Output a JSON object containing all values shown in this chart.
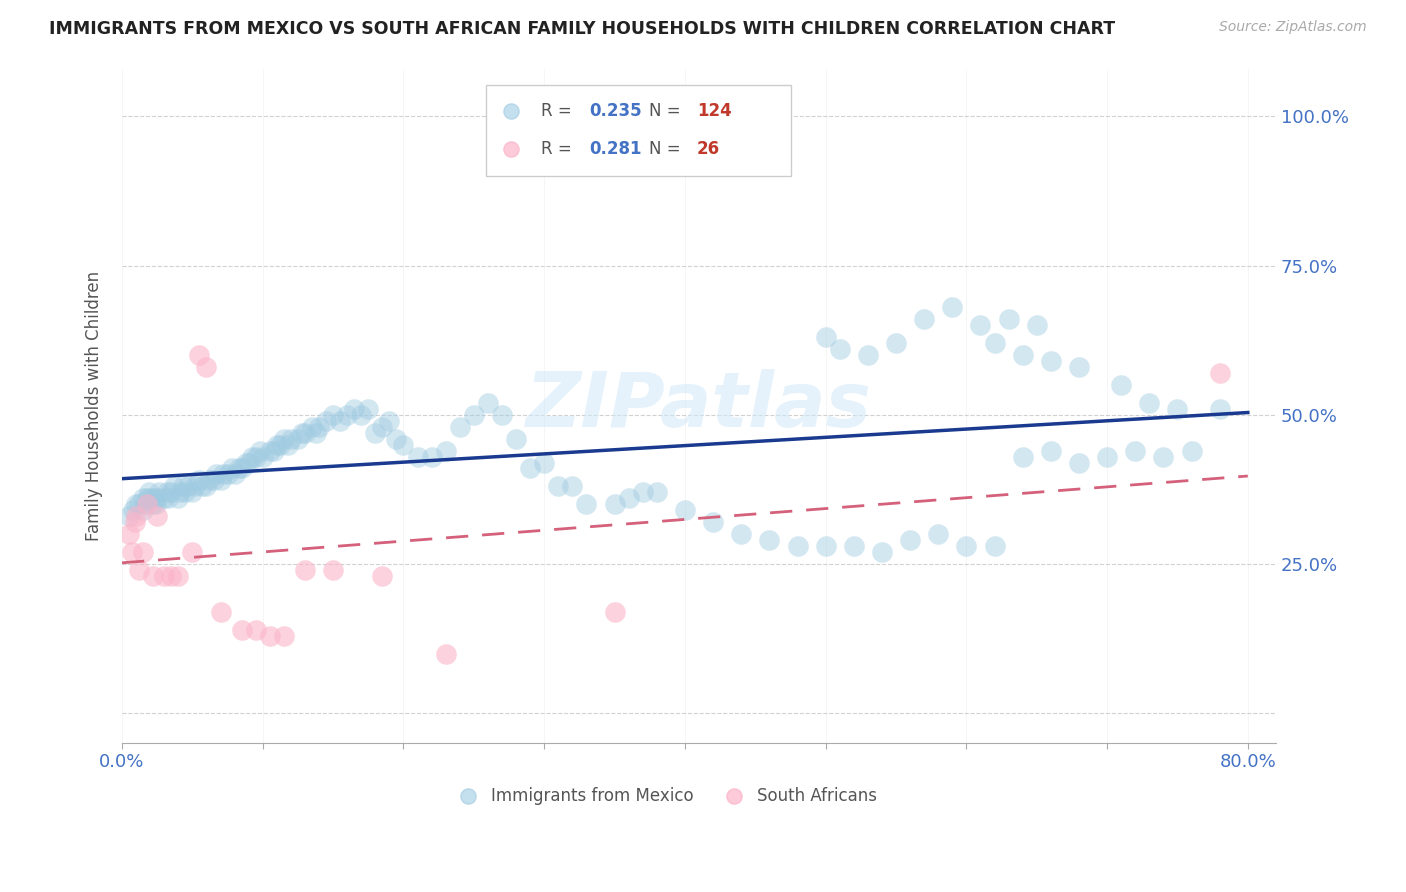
{
  "title": "IMMIGRANTS FROM MEXICO VS SOUTH AFRICAN FAMILY HOUSEHOLDS WITH CHILDREN CORRELATION CHART",
  "source": "Source: ZipAtlas.com",
  "ylabel": "Family Households with Children",
  "legend1": "Immigrants from Mexico",
  "legend2": "South Africans",
  "R1": 0.235,
  "N1": 124,
  "R2": 0.281,
  "N2": 26,
  "xlim": [
    0.0,
    0.82
  ],
  "ylim": [
    -0.05,
    1.08
  ],
  "color_blue": "#9ecae1",
  "color_pink": "#fbb4c9",
  "color_trend_blue": "#1a3a8f",
  "color_trend_pink": "#d4607a",
  "color_axis": "#4472c4",
  "color_r": "#4472c4",
  "color_n": "#c0392b",
  "watermark_color": "#d0e8f8",
  "blue_x": [
    0.005,
    0.008,
    0.01,
    0.012,
    0.015,
    0.015,
    0.017,
    0.018,
    0.019,
    0.02,
    0.022,
    0.023,
    0.024,
    0.025,
    0.026,
    0.03,
    0.032,
    0.033,
    0.035,
    0.037,
    0.04,
    0.041,
    0.043,
    0.045,
    0.047,
    0.05,
    0.052,
    0.055,
    0.057,
    0.06,
    0.062,
    0.065,
    0.067,
    0.07,
    0.072,
    0.075,
    0.078,
    0.08,
    0.083,
    0.085,
    0.088,
    0.09,
    0.092,
    0.095,
    0.098,
    0.1,
    0.105,
    0.108,
    0.11,
    0.112,
    0.115,
    0.118,
    0.12,
    0.125,
    0.128,
    0.13,
    0.135,
    0.138,
    0.14,
    0.145,
    0.15,
    0.155,
    0.16,
    0.165,
    0.17,
    0.175,
    0.18,
    0.185,
    0.19,
    0.195,
    0.2,
    0.21,
    0.22,
    0.23,
    0.24,
    0.25,
    0.26,
    0.27,
    0.28,
    0.29,
    0.3,
    0.31,
    0.32,
    0.33,
    0.35,
    0.36,
    0.37,
    0.38,
    0.4,
    0.42,
    0.44,
    0.46,
    0.48,
    0.5,
    0.52,
    0.54,
    0.56,
    0.58,
    0.6,
    0.62,
    0.64,
    0.66,
    0.68,
    0.7,
    0.72,
    0.74,
    0.76,
    0.78,
    0.57,
    0.59,
    0.61,
    0.63,
    0.65,
    0.5,
    0.51,
    0.53,
    0.55,
    0.62,
    0.64,
    0.66,
    0.68,
    0.71,
    0.73,
    0.75
  ],
  "blue_y": [
    0.33,
    0.34,
    0.35,
    0.35,
    0.34,
    0.36,
    0.35,
    0.36,
    0.37,
    0.36,
    0.35,
    0.36,
    0.35,
    0.36,
    0.37,
    0.36,
    0.37,
    0.36,
    0.37,
    0.38,
    0.36,
    0.37,
    0.38,
    0.37,
    0.38,
    0.37,
    0.38,
    0.39,
    0.38,
    0.38,
    0.39,
    0.39,
    0.4,
    0.39,
    0.4,
    0.4,
    0.41,
    0.4,
    0.41,
    0.41,
    0.42,
    0.42,
    0.43,
    0.43,
    0.44,
    0.43,
    0.44,
    0.44,
    0.45,
    0.45,
    0.46,
    0.45,
    0.46,
    0.46,
    0.47,
    0.47,
    0.48,
    0.47,
    0.48,
    0.49,
    0.5,
    0.49,
    0.5,
    0.51,
    0.5,
    0.51,
    0.47,
    0.48,
    0.49,
    0.46,
    0.45,
    0.43,
    0.43,
    0.44,
    0.48,
    0.5,
    0.52,
    0.5,
    0.46,
    0.41,
    0.42,
    0.38,
    0.38,
    0.35,
    0.35,
    0.36,
    0.37,
    0.37,
    0.34,
    0.32,
    0.3,
    0.29,
    0.28,
    0.28,
    0.28,
    0.27,
    0.29,
    0.3,
    0.28,
    0.28,
    0.43,
    0.44,
    0.42,
    0.43,
    0.44,
    0.43,
    0.44,
    0.51,
    0.66,
    0.68,
    0.65,
    0.66,
    0.65,
    0.63,
    0.61,
    0.6,
    0.62,
    0.62,
    0.6,
    0.59,
    0.58,
    0.55,
    0.52,
    0.51
  ],
  "pink_x": [
    0.005,
    0.007,
    0.009,
    0.01,
    0.012,
    0.015,
    0.018,
    0.022,
    0.025,
    0.03,
    0.035,
    0.04,
    0.05,
    0.055,
    0.06,
    0.07,
    0.085,
    0.095,
    0.105,
    0.115,
    0.13,
    0.15,
    0.185,
    0.23,
    0.35,
    0.78
  ],
  "pink_y": [
    0.3,
    0.27,
    0.32,
    0.33,
    0.24,
    0.27,
    0.35,
    0.23,
    0.33,
    0.23,
    0.23,
    0.23,
    0.27,
    0.6,
    0.58,
    0.17,
    0.14,
    0.14,
    0.13,
    0.13,
    0.24,
    0.24,
    0.23,
    0.1,
    0.17,
    0.57
  ]
}
